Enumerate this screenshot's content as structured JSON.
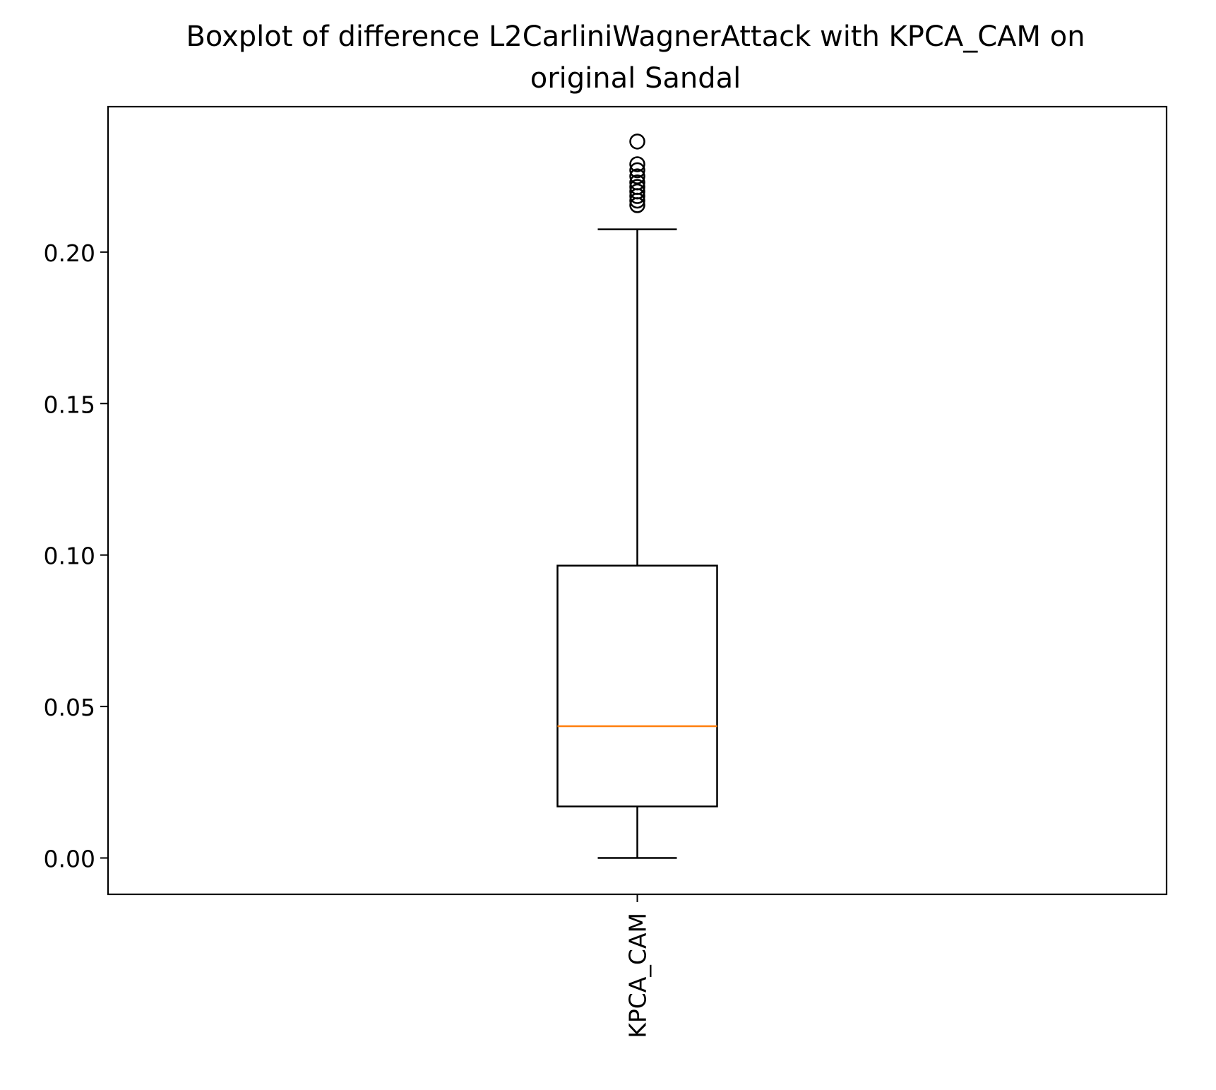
{
  "chart_data": {
    "type": "boxplot",
    "title_lines": [
      "Boxplot of difference L2CarliniWagnerAttack with KPCA_CAM on",
      "original Sandal"
    ],
    "xlabel": "",
    "ylabel": "",
    "categories": [
      "KPCA_CAM"
    ],
    "ylim": [
      -0.012,
      0.248
    ],
    "yticks": [
      0.0,
      0.05,
      0.1,
      0.15,
      0.2
    ],
    "ytick_labels": [
      "0.00",
      "0.05",
      "0.10",
      "0.15",
      "0.20"
    ],
    "grid": false,
    "boxes": [
      {
        "label": "KPCA_CAM",
        "whisker_low": 0.0,
        "q1": 0.017,
        "median": 0.0435,
        "q3": 0.0965,
        "whisker_high": 0.2075,
        "outliers": [
          0.2155,
          0.217,
          0.2185,
          0.22,
          0.2215,
          0.223,
          0.225,
          0.227,
          0.229,
          0.2365
        ]
      }
    ],
    "colors": {
      "box": "#000000",
      "median": "#ff7f0e"
    }
  }
}
